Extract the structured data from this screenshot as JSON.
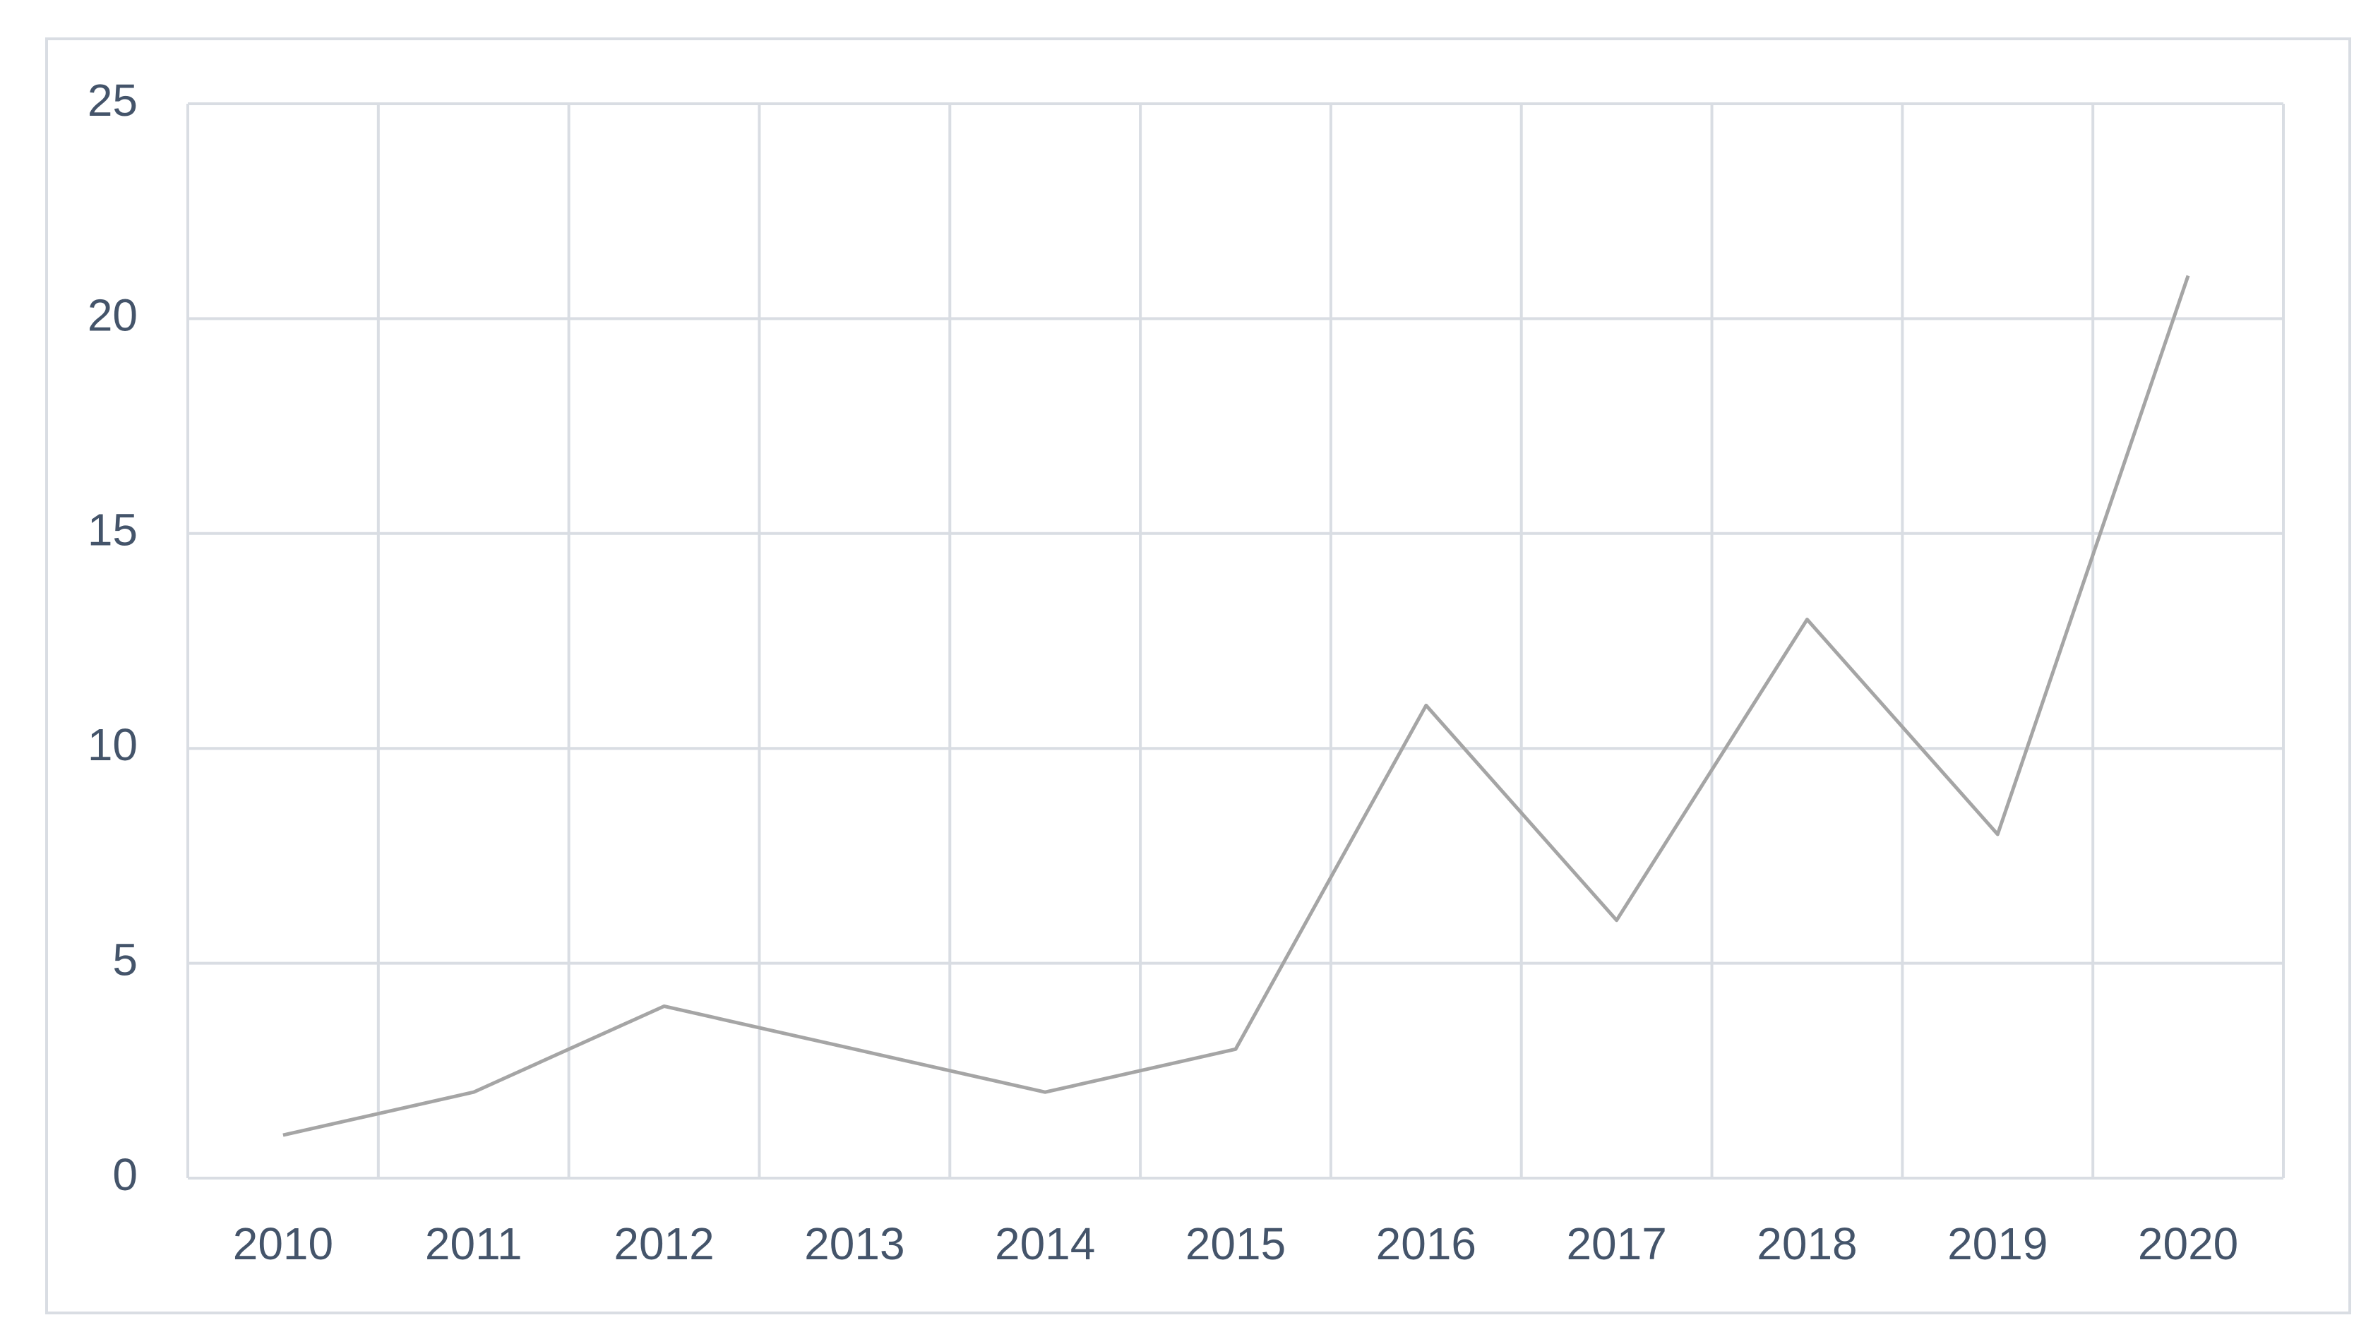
{
  "chart_data": {
    "type": "line",
    "categories": [
      "2010",
      "2011",
      "2012",
      "2013",
      "2014",
      "2015",
      "2016",
      "2017",
      "2018",
      "2019",
      "2020"
    ],
    "values": [
      1,
      2,
      4,
      3,
      2,
      3,
      11,
      6,
      13,
      8,
      21
    ],
    "color": "#a5a5a5",
    "ylim": [
      0,
      25
    ],
    "yticks": [
      0,
      5,
      10,
      15,
      20,
      25
    ],
    "grid": true
  }
}
